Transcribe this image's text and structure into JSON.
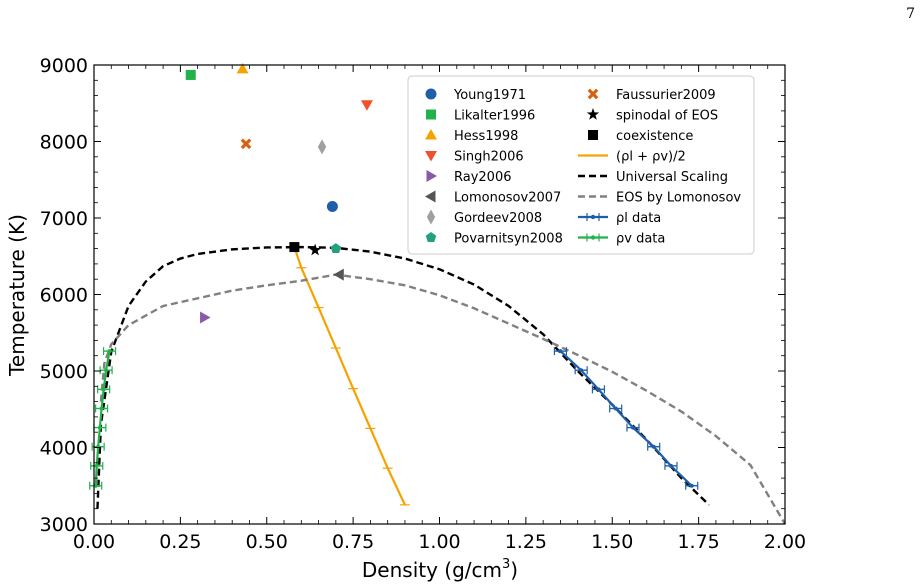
{
  "page_number": "7",
  "chart_data": {
    "type": "scatter",
    "xlabel": "Density (g/cm",
    "xlabel_sup": "3",
    "xlabel_tail": ")",
    "ylabel": "Temperature (K)",
    "xlim": [
      0.0,
      2.0
    ],
    "ylim": [
      3000,
      9000
    ],
    "xticks": [
      "0.00",
      "0.25",
      "0.50",
      "0.75",
      "1.00",
      "1.25",
      "1.50",
      "1.75",
      "2.00"
    ],
    "yticks": [
      "3000",
      "4000",
      "5000",
      "6000",
      "7000",
      "8000",
      "9000"
    ],
    "grid": false,
    "legend_position": "top-right",
    "points": [
      {
        "name": "Young1971",
        "x": 0.69,
        "y": 7150,
        "marker": "circle",
        "color": "#1f5fa8"
      },
      {
        "name": "Likalter1996",
        "x": 0.28,
        "y": 8870,
        "marker": "square",
        "color": "#22b24c"
      },
      {
        "name": "Hess1998",
        "x": 0.43,
        "y": 8950,
        "marker": "triangle-up",
        "color": "#f5a300"
      },
      {
        "name": "Singh2006",
        "x": 0.79,
        "y": 8480,
        "marker": "triangle-down",
        "color": "#f0502a"
      },
      {
        "name": "Ray2006",
        "x": 0.32,
        "y": 5700,
        "marker": "triangle-right",
        "color": "#8a5aa8"
      },
      {
        "name": "Lomonosov2007",
        "x": 0.71,
        "y": 6260,
        "marker": "triangle-left",
        "color": "#555555"
      },
      {
        "name": "Gordeev2008",
        "x": 0.66,
        "y": 7930,
        "marker": "diamond",
        "color": "#a0a0a0"
      },
      {
        "name": "Povarnitsyn2008",
        "x": 0.7,
        "y": 6600,
        "marker": "pentagon",
        "color": "#22a080"
      },
      {
        "name": "Faussurier2009",
        "x": 0.44,
        "y": 7970,
        "marker": "x",
        "color": "#d96010"
      },
      {
        "name": "spinodal of EOS",
        "x": 0.64,
        "y": 6580,
        "marker": "star",
        "color": "#000000"
      },
      {
        "name": "coexistence",
        "x": 0.58,
        "y": 6620,
        "marker": "square",
        "color": "#000000"
      }
    ],
    "series": [
      {
        "name": "(ρl + ρv)/2",
        "style": "solid",
        "color": "#f5a300",
        "x": [
          0.58,
          0.6,
          0.65,
          0.7,
          0.75,
          0.8,
          0.85,
          0.9
        ],
        "y": [
          6620,
          6350,
          5830,
          5300,
          4770,
          4250,
          3730,
          3250
        ]
      },
      {
        "name": "Universal Scaling",
        "style": "dashed",
        "color": "#000000",
        "x": [
          0.01,
          0.02,
          0.05,
          0.1,
          0.15,
          0.2,
          0.25,
          0.3,
          0.4,
          0.5,
          0.6,
          0.7,
          0.8,
          0.9,
          1.0,
          1.1,
          1.2,
          1.3,
          1.4,
          1.5,
          1.6,
          1.7,
          1.78
        ],
        "y": [
          3200,
          4300,
          5250,
          5850,
          6170,
          6370,
          6470,
          6530,
          6590,
          6615,
          6620,
          6610,
          6560,
          6470,
          6330,
          6130,
          5850,
          5480,
          5000,
          4560,
          4100,
          3600,
          3250
        ]
      },
      {
        "name": "EOS by Lomonosov",
        "style": "dashed",
        "color": "#808080",
        "x": [
          0.02,
          0.03,
          0.05,
          0.1,
          0.2,
          0.3,
          0.4,
          0.5,
          0.6,
          0.7,
          0.8,
          0.9,
          1.0,
          1.1,
          1.2,
          1.3,
          1.4,
          1.5,
          1.6,
          1.7,
          1.8,
          1.9,
          2.0
        ],
        "y": [
          4600,
          5100,
          5350,
          5600,
          5850,
          5950,
          6050,
          6120,
          6180,
          6260,
          6200,
          6120,
          5990,
          5820,
          5620,
          5420,
          5210,
          4990,
          4740,
          4470,
          4150,
          3770,
          3000
        ]
      },
      {
        "name": "ρl data",
        "style": "solid-errorbar",
        "color": "#1f5fa8",
        "x": [
          1.35,
          1.41,
          1.46,
          1.51,
          1.56,
          1.62,
          1.67,
          1.73
        ],
        "y": [
          5260,
          5010,
          4760,
          4510,
          4260,
          4010,
          3760,
          3500
        ]
      },
      {
        "name": "ρv data",
        "style": "solid-errorbar",
        "color": "#22b24c",
        "x": [
          0.005,
          0.008,
          0.012,
          0.017,
          0.022,
          0.028,
          0.035,
          0.045
        ],
        "y": [
          3500,
          3760,
          4010,
          4260,
          4510,
          4760,
          5010,
          5260
        ]
      }
    ],
    "legend": [
      {
        "label": "Young1971",
        "marker": "circle",
        "color": "#1f5fa8"
      },
      {
        "label": "Likalter1996",
        "marker": "square",
        "color": "#22b24c"
      },
      {
        "label": "Hess1998",
        "marker": "triangle-up",
        "color": "#f5a300"
      },
      {
        "label": "Singh2006",
        "marker": "triangle-down",
        "color": "#f0502a"
      },
      {
        "label": "Ray2006",
        "marker": "triangle-right",
        "color": "#8a5aa8"
      },
      {
        "label": "Lomonosov2007",
        "marker": "triangle-left",
        "color": "#555555"
      },
      {
        "label": "Gordeev2008",
        "marker": "diamond",
        "color": "#a0a0a0"
      },
      {
        "label": "Povarnitsyn2008",
        "marker": "pentagon",
        "color": "#22a080"
      },
      {
        "label": "Faussurier2009",
        "marker": "x",
        "color": "#d96010"
      },
      {
        "label": "spinodal of EOS",
        "marker": "star",
        "color": "#000000"
      },
      {
        "label": "coexistence",
        "marker": "square",
        "color": "#000000"
      },
      {
        "label": "(ρl + ρv)/2",
        "marker": "line-solid",
        "color": "#f5a300"
      },
      {
        "label": "Universal Scaling",
        "marker": "line-dashed",
        "color": "#000000"
      },
      {
        "label": "EOS by Lomonosov",
        "marker": "line-dashed",
        "color": "#808080"
      },
      {
        "label": "ρl data",
        "marker": "line-errorbar",
        "color": "#1f5fa8"
      },
      {
        "label": "ρv data",
        "marker": "line-errorbar",
        "color": "#22b24c"
      }
    ]
  }
}
